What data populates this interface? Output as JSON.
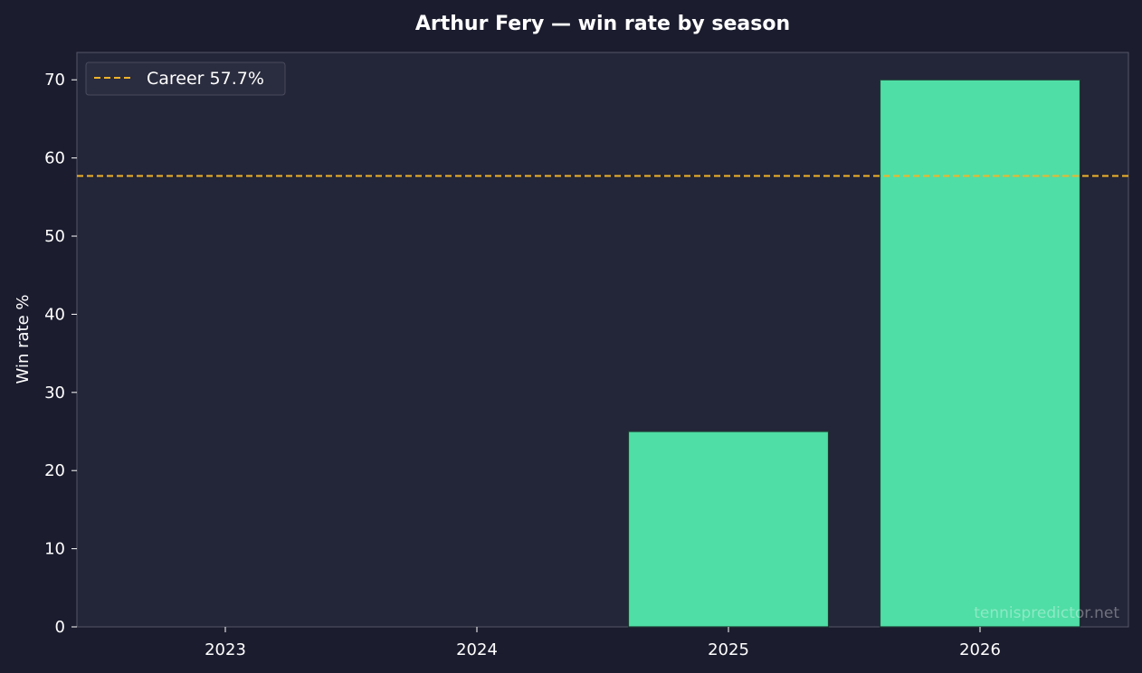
{
  "chart_data": {
    "type": "bar",
    "title": "Arthur Fery — win rate by season",
    "xlabel": "",
    "ylabel": "Win rate %",
    "categories": [
      "2023",
      "2024",
      "2025",
      "2026"
    ],
    "values": [
      0,
      0,
      25.0,
      70.0
    ],
    "ylim": [
      0,
      73.5
    ],
    "yticks": [
      0,
      10,
      20,
      30,
      40,
      50,
      60,
      70
    ],
    "grid": false,
    "reference_line": {
      "label": "Career 57.7%",
      "value": 57.7,
      "style": "dashed"
    },
    "legend": {
      "placement": "top-left",
      "entries": [
        "Career 57.7%"
      ]
    },
    "watermark": "tennispredictor.net",
    "colors": {
      "page_background": "#1b1c2e",
      "plot_background": "#232538",
      "bar": "#4fdea5",
      "bar_edge": "#1e3a34",
      "reference_line": "#f0b429",
      "text": "#ffffff",
      "axis": "#555869"
    }
  }
}
